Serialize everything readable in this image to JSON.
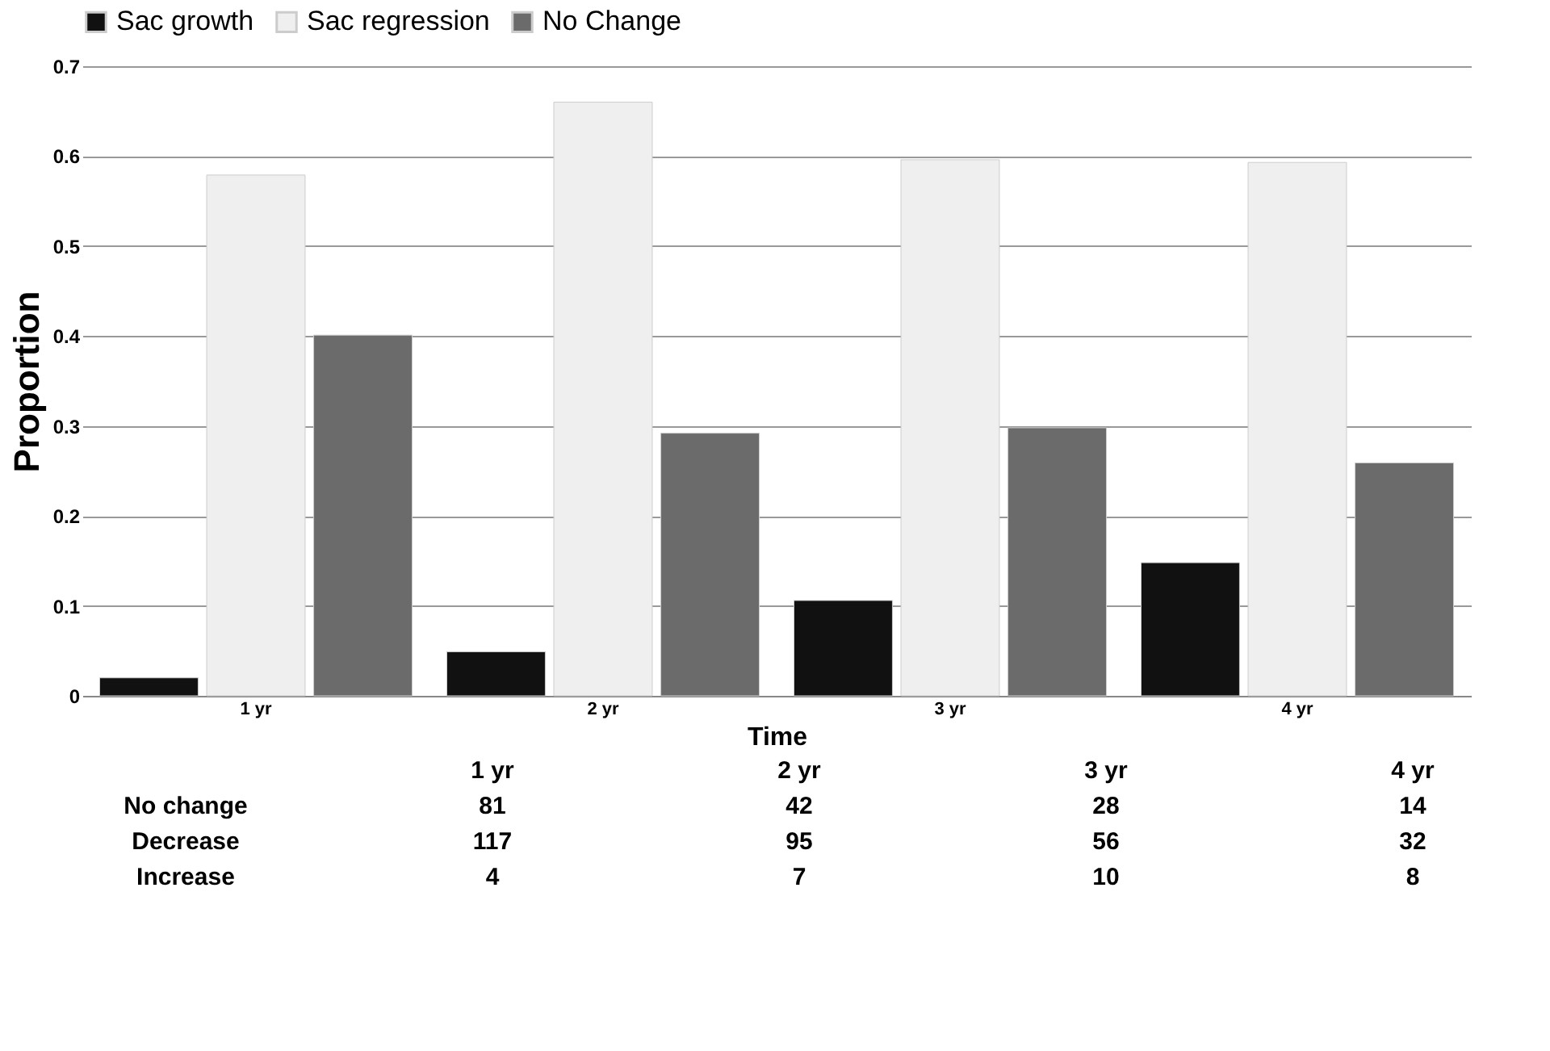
{
  "chart_data": {
    "type": "bar",
    "xlabel": "Time",
    "ylabel": "Proportion",
    "categories": [
      "1 yr",
      "2 yr",
      "3 yr",
      "4 yr"
    ],
    "series": [
      {
        "name": "Sac growth",
        "color": "#111111",
        "values": [
          0.02,
          0.049,
          0.106,
          0.148
        ]
      },
      {
        "name": "Sac regression",
        "color": "#efefef",
        "values": [
          0.579,
          0.66,
          0.596,
          0.593
        ]
      },
      {
        "name": "No Change",
        "color": "#6b6b6b",
        "values": [
          0.401,
          0.292,
          0.298,
          0.259
        ]
      }
    ],
    "ylim": [
      0,
      0.7
    ],
    "yticks": [
      0,
      0.1,
      0.2,
      0.3,
      0.4,
      0.5,
      0.6,
      0.7
    ],
    "grid": "y",
    "legend": "top",
    "annotations": [
      "1 yr",
      "2 yr",
      "3 yr",
      "4 yr",
      "No change",
      "81",
      "42",
      "28",
      "14",
      "Decrease",
      "117",
      "95",
      "56",
      "32",
      "Increase",
      "4",
      "7",
      "10",
      "8"
    ]
  }
}
